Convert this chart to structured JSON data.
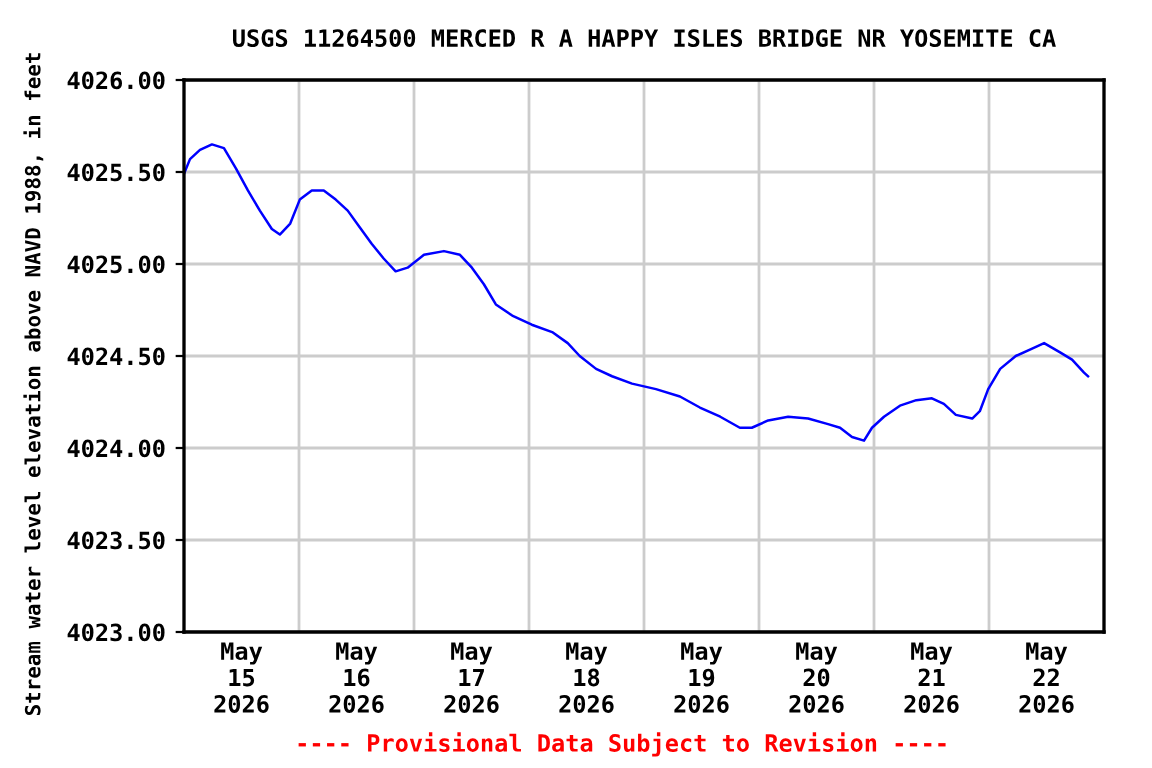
{
  "chart_data": {
    "type": "line",
    "title": "USGS 11264500 MERCED R A HAPPY ISLES BRIDGE NR YOSEMITE CA",
    "ylabel": "Stream water level elevation above NAVD 1988, in feet",
    "annotations": [
      "---- Provisional Data Subject to Revision ----"
    ],
    "series": [
      {
        "color": "#0000ff",
        "x": [
          "2026-05-15T00:00",
          "2026-05-15T01:15",
          "2026-05-15T03:20",
          "2026-05-15T05:50",
          "2026-05-15T08:20",
          "2026-05-15T10:50",
          "2026-05-15T13:20",
          "2026-05-15T15:50",
          "2026-05-15T18:20",
          "2026-05-15T20:00",
          "2026-05-15T22:10",
          "2026-05-16T00:10",
          "2026-05-16T02:40",
          "2026-05-16T05:10",
          "2026-05-16T07:40",
          "2026-05-16T10:10",
          "2026-05-16T12:40",
          "2026-05-16T15:10",
          "2026-05-16T17:40",
          "2026-05-16T20:10",
          "2026-05-16T22:40",
          "2026-05-17T02:05",
          "2026-05-17T06:15",
          "2026-05-17T09:35",
          "2026-05-17T12:05",
          "2026-05-17T14:35",
          "2026-05-17T17:05",
          "2026-05-17T20:30",
          "2026-05-18T00:35",
          "2026-05-18T04:50",
          "2026-05-18T08:05",
          "2026-05-18T10:35",
          "2026-05-18T14:00",
          "2026-05-18T17:20",
          "2026-05-18T21:30",
          "2026-05-19T02:30",
          "2026-05-19T07:30",
          "2026-05-19T11:40",
          "2026-05-19T15:55",
          "2026-05-19T20:00",
          "2026-05-19T22:30",
          "2026-05-20T01:55",
          "2026-05-20T06:05",
          "2026-05-20T10:15",
          "2026-05-20T14:25",
          "2026-05-20T16:55",
          "2026-05-20T19:25",
          "2026-05-20T21:55",
          "2026-05-20T23:35",
          "2026-05-21T02:05",
          "2026-05-21T05:25",
          "2026-05-21T08:50",
          "2026-05-21T12:05",
          "2026-05-21T14:35",
          "2026-05-21T17:05",
          "2026-05-21T20:30",
          "2026-05-21T22:05",
          "2026-05-21T23:50",
          "2026-05-22T02:20",
          "2026-05-22T05:35",
          "2026-05-22T09:00",
          "2026-05-22T11:30",
          "2026-05-22T14:50",
          "2026-05-22T17:20",
          "2026-05-22T19:50",
          "2026-05-22T20:40"
        ],
        "values": [
          4025.49,
          4025.57,
          4025.62,
          4025.65,
          4025.63,
          4025.52,
          4025.4,
          4025.29,
          4025.19,
          4025.16,
          4025.22,
          4025.35,
          4025.4,
          4025.4,
          4025.35,
          4025.29,
          4025.2,
          4025.11,
          4025.03,
          4024.96,
          4024.98,
          4025.05,
          4025.07,
          4025.05,
          4024.98,
          4024.89,
          4024.78,
          4024.72,
          4024.67,
          4024.63,
          4024.57,
          4024.5,
          4024.43,
          4024.39,
          4024.35,
          4024.32,
          4024.28,
          4024.22,
          4024.17,
          4024.11,
          4024.11,
          4024.15,
          4024.17,
          4024.16,
          4024.13,
          4024.11,
          4024.06,
          4024.04,
          4024.11,
          4024.17,
          4024.23,
          4024.26,
          4024.27,
          4024.24,
          4024.18,
          4024.16,
          4024.2,
          4024.32,
          4024.43,
          4024.5,
          4024.54,
          4024.57,
          4024.52,
          4024.48,
          4024.41,
          4024.39
        ]
      }
    ],
    "xlim": [
      "2026-05-15T00:00",
      "2026-05-23T00:00"
    ],
    "xticks": [
      {
        "value": "2026-05-15T12:00",
        "label": "May\n15\n2026"
      },
      {
        "value": "2026-05-16T00:00",
        "label": null
      },
      {
        "value": "2026-05-16T12:00",
        "label": "May\n16\n2026"
      },
      {
        "value": "2026-05-17T00:00",
        "label": null
      },
      {
        "value": "2026-05-17T12:00",
        "label": "May\n17\n2026"
      },
      {
        "value": "2026-05-18T00:00",
        "label": null
      },
      {
        "value": "2026-05-18T12:00",
        "label": "May\n18\n2026"
      },
      {
        "value": "2026-05-19T00:00",
        "label": null
      },
      {
        "value": "2026-05-19T12:00",
        "label": "May\n19\n2026"
      },
      {
        "value": "2026-05-20T00:00",
        "label": null
      },
      {
        "value": "2026-05-20T12:00",
        "label": "May\n20\n2026"
      },
      {
        "value": "2026-05-21T00:00",
        "label": null
      },
      {
        "value": "2026-05-21T12:00",
        "label": "May\n21\n2026"
      },
      {
        "value": "2026-05-22T00:00",
        "label": null
      },
      {
        "value": "2026-05-22T12:00",
        "label": "May\n22\n2026"
      }
    ],
    "ylim": [
      4023.0,
      4026.0
    ],
    "yticks": [
      {
        "value": 4023.0,
        "label": "4023.00"
      },
      {
        "value": 4023.5,
        "label": "4023.50"
      },
      {
        "value": 4024.0,
        "label": "4024.00"
      },
      {
        "value": 4024.5,
        "label": "4024.50"
      },
      {
        "value": 4025.0,
        "label": "4025.00"
      },
      {
        "value": 4025.5,
        "label": "4025.50"
      },
      {
        "value": 4026.0,
        "label": "4026.00"
      }
    ],
    "grid": true,
    "legend": false,
    "marker": "none",
    "line_style": "solid"
  }
}
